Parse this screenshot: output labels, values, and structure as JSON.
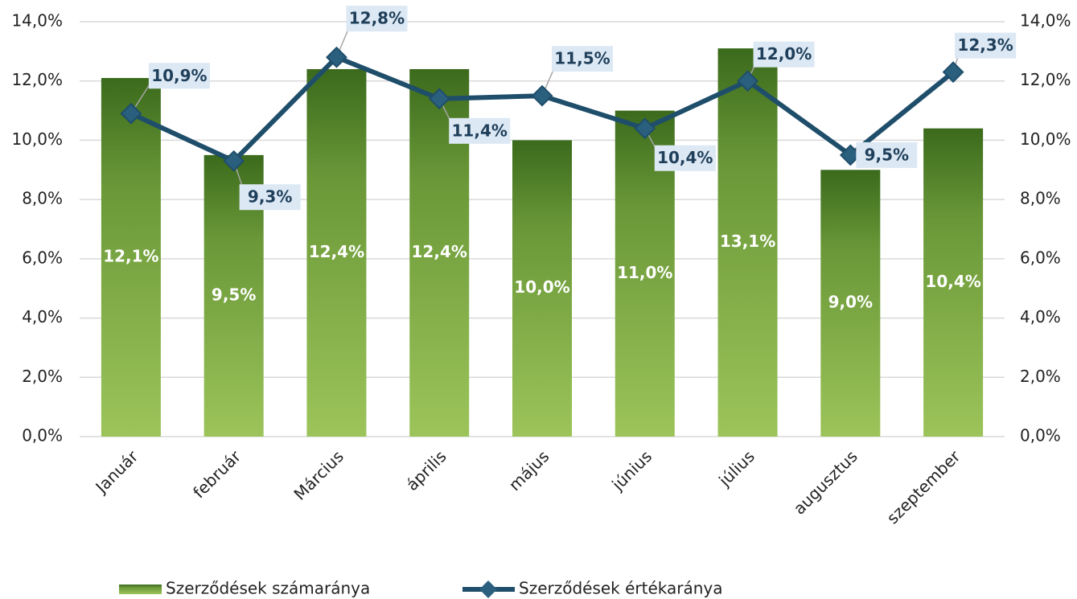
{
  "chart_data": {
    "type": "combo",
    "categories": [
      "Január",
      "február",
      "Március",
      "április",
      "május",
      "június",
      "július",
      "augusztus",
      "szeptember"
    ],
    "series": [
      {
        "name": "Szerződések számaránya",
        "type": "bar",
        "color": "#6b9a38",
        "values": [
          12.1,
          9.5,
          12.4,
          12.4,
          10.0,
          11.0,
          13.1,
          9.0,
          10.4
        ],
        "value_labels": [
          "12,1%",
          "9,5%",
          "12,4%",
          "12,4%",
          "10,0%",
          "11,0%",
          "13,1%",
          "9,0%",
          "10,4%"
        ]
      },
      {
        "name": "Szerződések értékaránya",
        "type": "line",
        "axis": "y2",
        "color": "#1f4e6b",
        "values": [
          10.9,
          9.3,
          12.8,
          11.4,
          11.5,
          10.4,
          12.0,
          9.5,
          12.3
        ],
        "value_labels": [
          "10,9%",
          "9,3%",
          "12,8%",
          "11,4%",
          "11,5%",
          "10,4%",
          "12,0%",
          "9,5%",
          "12,3%"
        ]
      }
    ],
    "ylim": [
      0,
      14
    ],
    "yticks": [
      {
        "value": 0,
        "label": "0,0%"
      },
      {
        "value": 2,
        "label": "2,0%"
      },
      {
        "value": 4,
        "label": "4,0%"
      },
      {
        "value": 6,
        "label": "6,0%"
      },
      {
        "value": 8,
        "label": "8,0%"
      },
      {
        "value": 10,
        "label": "10,0%"
      },
      {
        "value": 12,
        "label": "12,0%"
      },
      {
        "value": 14,
        "label": "14,0%"
      }
    ],
    "y2lim": [
      0,
      14
    ],
    "y2ticks": [
      {
        "value": 0,
        "label": "0,0%"
      },
      {
        "value": 2,
        "label": "2,0%"
      },
      {
        "value": 4,
        "label": "4,0%"
      },
      {
        "value": 6,
        "label": "6,0%"
      },
      {
        "value": 8,
        "label": "8,0%"
      },
      {
        "value": 10,
        "label": "10,0%"
      },
      {
        "value": 12,
        "label": "12,0%"
      },
      {
        "value": 14,
        "label": "14,0%"
      }
    ],
    "grid": true,
    "legend": "bottom"
  }
}
